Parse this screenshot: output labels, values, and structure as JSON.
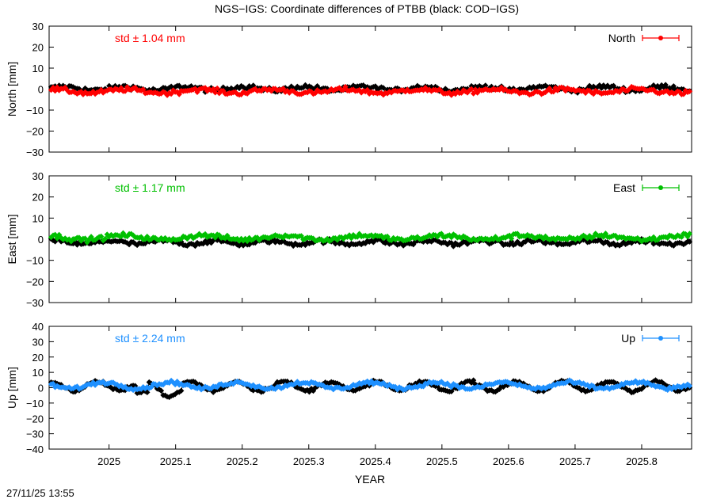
{
  "title": "NGS−IGS: Coordinate differences of PTBB (black: COD−IGS)",
  "timestamp": "27/11/25 13:55",
  "xlabel": "YEAR",
  "colors": {
    "black": "#000000",
    "north": "#ff0000",
    "east": "#00c000",
    "up": "#1e90ff"
  },
  "chart_data": [
    {
      "type": "scatter",
      "panel": "north",
      "ylabel": "North [mm]",
      "legend": "North",
      "legend_placement": "top-right",
      "std_text": "std ± 1.04 mm",
      "ylim": [
        -30,
        30
      ],
      "yticks": [
        -30,
        -20,
        -10,
        0,
        10,
        20,
        30
      ],
      "xlim": [
        2024.91,
        2025.875
      ],
      "xticks": [
        2025.0,
        2025.1,
        2025.2,
        2025.3,
        2025.4,
        2025.5,
        2025.6,
        2025.7,
        2025.8
      ],
      "xticklabels": [],
      "grid": false,
      "series": [
        {
          "name": "COD−IGS",
          "color": "#000000",
          "offset": 0.3,
          "amplitude": 0.9,
          "period": 0.09
        },
        {
          "name": "North",
          "color": "#ff0000",
          "offset": -1.0,
          "amplitude": 0.9,
          "period": 0.11
        }
      ]
    },
    {
      "type": "scatter",
      "panel": "east",
      "ylabel": "East [mm]",
      "legend": "East",
      "legend_placement": "top-right",
      "std_text": "std ± 1.17 mm",
      "ylim": [
        -30,
        30
      ],
      "yticks": [
        -30,
        -20,
        -10,
        0,
        10,
        20,
        30
      ],
      "xlim": [
        2024.91,
        2025.875
      ],
      "xticks": [
        2025.0,
        2025.1,
        2025.2,
        2025.3,
        2025.4,
        2025.5,
        2025.6,
        2025.7,
        2025.8
      ],
      "xticklabels": [],
      "grid": false,
      "series": [
        {
          "name": "COD−IGS",
          "color": "#000000",
          "offset": -1.5,
          "amplitude": 0.8,
          "period": 0.08
        },
        {
          "name": "East",
          "color": "#00c000",
          "offset": 0.8,
          "amplitude": 1.0,
          "period": 0.12
        }
      ]
    },
    {
      "type": "scatter",
      "panel": "up",
      "ylabel": "Up [mm]",
      "legend": "Up",
      "legend_placement": "top-right",
      "std_text": "std ± 2.24 mm",
      "ylim": [
        -40,
        40
      ],
      "yticks": [
        -40,
        -30,
        -20,
        -10,
        0,
        10,
        20,
        30,
        40
      ],
      "xlim": [
        2024.91,
        2025.875
      ],
      "xticks": [
        2025.0,
        2025.1,
        2025.2,
        2025.3,
        2025.4,
        2025.5,
        2025.6,
        2025.7,
        2025.8
      ],
      "xticklabels": [
        "2025",
        "2025.1",
        "2025.2",
        "2025.3",
        "2025.4",
        "2025.5",
        "2025.6",
        "2025.7",
        "2025.8"
      ],
      "grid": false,
      "series": [
        {
          "name": "COD−IGS",
          "color": "#000000",
          "offset": 1.0,
          "amplitude": 3.0,
          "period": 0.07
        },
        {
          "name": "Up",
          "color": "#1e90ff",
          "offset": 1.5,
          "amplitude": 2.0,
          "period": 0.1
        }
      ]
    }
  ]
}
